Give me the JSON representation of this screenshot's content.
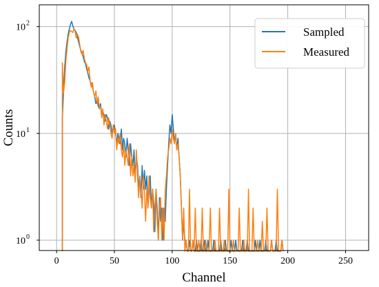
{
  "chart_data": {
    "type": "line",
    "title": "",
    "xlabel": "Channel",
    "ylabel": "Counts",
    "xlim": [
      -15,
      270
    ],
    "ylim": [
      0.8,
      160
    ],
    "yscale": "log",
    "grid": true,
    "legend_position": "top-right",
    "x_ticks": [
      {
        "value": 0,
        "label": "0"
      },
      {
        "value": 50,
        "label": "50"
      },
      {
        "value": 100,
        "label": "100"
      },
      {
        "value": 150,
        "label": "150"
      },
      {
        "value": 200,
        "label": "200"
      },
      {
        "value": 250,
        "label": "250"
      }
    ],
    "y_ticks": [
      {
        "value": 1,
        "label": "10",
        "exp": "0"
      },
      {
        "value": 10,
        "label": "10",
        "exp": "1"
      },
      {
        "value": 100,
        "label": "10",
        "exp": "2"
      }
    ],
    "series": [
      {
        "name": "Sampled",
        "color": "#1f77b4",
        "points": [
          [
            5,
            14
          ],
          [
            6,
            25
          ],
          [
            7,
            42
          ],
          [
            8,
            58
          ],
          [
            9,
            72
          ],
          [
            10,
            85
          ],
          [
            11,
            95
          ],
          [
            12,
            105
          ],
          [
            13,
            112
          ],
          [
            14,
            102
          ],
          [
            15,
            95
          ],
          [
            16,
            92
          ],
          [
            17,
            88
          ],
          [
            18,
            80
          ],
          [
            19,
            72
          ],
          [
            20,
            65
          ],
          [
            21,
            60
          ],
          [
            22,
            56
          ],
          [
            23,
            52
          ],
          [
            24,
            47
          ],
          [
            25,
            45
          ],
          [
            26,
            40
          ],
          [
            27,
            37
          ],
          [
            28,
            33
          ],
          [
            29,
            31
          ],
          [
            30,
            29
          ],
          [
            31,
            28
          ],
          [
            32,
            24
          ],
          [
            33,
            22
          ],
          [
            34,
            19
          ],
          [
            35,
            21
          ],
          [
            36,
            18
          ],
          [
            37,
            17
          ],
          [
            38,
            19
          ],
          [
            39,
            15
          ],
          [
            40,
            16
          ],
          [
            41,
            15
          ],
          [
            42,
            13
          ],
          [
            43,
            15
          ],
          [
            44,
            14
          ],
          [
            45,
            11
          ],
          [
            46,
            13
          ],
          [
            47,
            12
          ],
          [
            48,
            10
          ],
          [
            49,
            11
          ],
          [
            50,
            12
          ],
          [
            51,
            10
          ],
          [
            52,
            8
          ],
          [
            53,
            10
          ],
          [
            54,
            9
          ],
          [
            55,
            8
          ],
          [
            56,
            11
          ],
          [
            57,
            7
          ],
          [
            58,
            9
          ],
          [
            59,
            8
          ],
          [
            60,
            6
          ],
          [
            61,
            9
          ],
          [
            62,
            7
          ],
          [
            63,
            5
          ],
          [
            64,
            8
          ],
          [
            65,
            6
          ],
          [
            66,
            5
          ],
          [
            67,
            7
          ],
          [
            68,
            4
          ],
          [
            69,
            6
          ],
          [
            70,
            5
          ],
          [
            71,
            3
          ],
          [
            72,
            4
          ],
          [
            73,
            2.5
          ],
          [
            74,
            5
          ],
          [
            75,
            3
          ],
          [
            76,
            4.5
          ],
          [
            77,
            3
          ],
          [
            78,
            4
          ],
          [
            79,
            2
          ],
          [
            80,
            3
          ],
          [
            81,
            4
          ],
          [
            82,
            2
          ],
          [
            83,
            3
          ],
          [
            84,
            2.2
          ],
          [
            85,
            1.2
          ],
          [
            86,
            3
          ],
          [
            87,
            2
          ],
          [
            88,
            1
          ],
          [
            89,
            2.5
          ],
          [
            90,
            1.5
          ],
          [
            91,
            2
          ],
          [
            92,
            1
          ],
          [
            93,
            2
          ],
          [
            94,
            1.5
          ],
          [
            95,
            3
          ],
          [
            96,
            5
          ],
          [
            97,
            8
          ],
          [
            98,
            12
          ],
          [
            99,
            10
          ],
          [
            100,
            15
          ],
          [
            101,
            11
          ],
          [
            102,
            8
          ],
          [
            103,
            10
          ],
          [
            104,
            7
          ],
          [
            105,
            9
          ],
          [
            106,
            6
          ],
          [
            107,
            4
          ],
          [
            108,
            2
          ],
          [
            109,
            1
          ],
          [
            110,
            1.5
          ],
          [
            111,
            1
          ],
          [
            112,
            1
          ],
          [
            115,
            1
          ],
          [
            118,
            1
          ],
          [
            121,
            1
          ],
          [
            125,
            1
          ],
          [
            128,
            1
          ],
          [
            131,
            1
          ],
          [
            136,
            1
          ],
          [
            142,
            1
          ],
          [
            146,
            1
          ],
          [
            151,
            1
          ],
          [
            155,
            1
          ],
          [
            161,
            1
          ],
          [
            165,
            1
          ],
          [
            172,
            1
          ],
          [
            176,
            1
          ],
          [
            181,
            1
          ],
          [
            186,
            1
          ],
          [
            190,
            1
          ],
          [
            195,
            1
          ]
        ]
      },
      {
        "name": "Measured",
        "color": "#ff7f0e",
        "points": [
          [
            5,
            46
          ],
          [
            6,
            24
          ],
          [
            7,
            30
          ],
          [
            8,
            48
          ],
          [
            9,
            62
          ],
          [
            10,
            78
          ],
          [
            11,
            88
          ],
          [
            12,
            92
          ],
          [
            13,
            90
          ],
          [
            14,
            88
          ],
          [
            15,
            95
          ],
          [
            16,
            90
          ],
          [
            17,
            78
          ],
          [
            18,
            85
          ],
          [
            19,
            80
          ],
          [
            20,
            68
          ],
          [
            21,
            58
          ],
          [
            22,
            55
          ],
          [
            23,
            60
          ],
          [
            24,
            50
          ],
          [
            25,
            46
          ],
          [
            26,
            44
          ],
          [
            27,
            38
          ],
          [
            28,
            42
          ],
          [
            29,
            31
          ],
          [
            30,
            27
          ],
          [
            31,
            30
          ],
          [
            32,
            24
          ],
          [
            33,
            22
          ],
          [
            34,
            25
          ],
          [
            35,
            19
          ],
          [
            36,
            22
          ],
          [
            37,
            17
          ],
          [
            38,
            18
          ],
          [
            39,
            14
          ],
          [
            40,
            17
          ],
          [
            41,
            12
          ],
          [
            42,
            15
          ],
          [
            43,
            13
          ],
          [
            44,
            11
          ],
          [
            45,
            14
          ],
          [
            46,
            12
          ],
          [
            47,
            10
          ],
          [
            48,
            9
          ],
          [
            49,
            12
          ],
          [
            50,
            10
          ],
          [
            51,
            11
          ],
          [
            52,
            7
          ],
          [
            53,
            9
          ],
          [
            54,
            8
          ],
          [
            55,
            10
          ],
          [
            56,
            7
          ],
          [
            57,
            6
          ],
          [
            58,
            8
          ],
          [
            59,
            5
          ],
          [
            60,
            7
          ],
          [
            61,
            6
          ],
          [
            62,
            5
          ],
          [
            63,
            8
          ],
          [
            64,
            4
          ],
          [
            65,
            6
          ],
          [
            66,
            4
          ],
          [
            67,
            5
          ],
          [
            68,
            3.5
          ],
          [
            69,
            7
          ],
          [
            70,
            4
          ],
          [
            71,
            2.5
          ],
          [
            72,
            4
          ],
          [
            73,
            3
          ],
          [
            74,
            2
          ],
          [
            75,
            4
          ],
          [
            76,
            3
          ],
          [
            77,
            1.5
          ],
          [
            78,
            3
          ],
          [
            79,
            2
          ],
          [
            80,
            4
          ],
          [
            81,
            2.5
          ],
          [
            82,
            2
          ],
          [
            83,
            3
          ],
          [
            84,
            1.2
          ],
          [
            85,
            2
          ],
          [
            86,
            3
          ],
          [
            87,
            1.5
          ],
          [
            88,
            1
          ],
          [
            89,
            2
          ],
          [
            90,
            2.5
          ],
          [
            91,
            1
          ],
          [
            92,
            2
          ],
          [
            93,
            1
          ],
          [
            94,
            3
          ],
          [
            95,
            4
          ],
          [
            96,
            6
          ],
          [
            97,
            7
          ],
          [
            98,
            9
          ],
          [
            99,
            8
          ],
          [
            100,
            11
          ],
          [
            101,
            9
          ],
          [
            102,
            8
          ],
          [
            103,
            10
          ],
          [
            104,
            7
          ],
          [
            105,
            8
          ],
          [
            106,
            6
          ],
          [
            107,
            4
          ],
          [
            108,
            2
          ],
          [
            109,
            1
          ],
          [
            110,
            2
          ],
          [
            112,
            1
          ],
          [
            115,
            3
          ],
          [
            118,
            1
          ],
          [
            120,
            2
          ],
          [
            123,
            1
          ],
          [
            126,
            2
          ],
          [
            129,
            1
          ],
          [
            133,
            2
          ],
          [
            137,
            1
          ],
          [
            141,
            2
          ],
          [
            145,
            1
          ],
          [
            149,
            3
          ],
          [
            153,
            1
          ],
          [
            158,
            2
          ],
          [
            162,
            1
          ],
          [
            166,
            3
          ],
          [
            170,
            2
          ],
          [
            174,
            1
          ],
          [
            178,
            1.5
          ],
          [
            182,
            2
          ],
          [
            186,
            1
          ],
          [
            191,
            3
          ],
          [
            195,
            1
          ]
        ]
      }
    ]
  }
}
